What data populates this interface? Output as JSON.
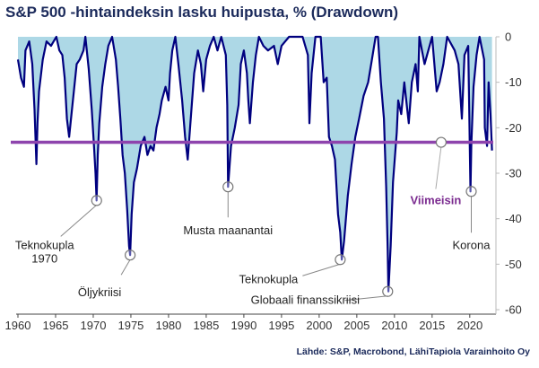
{
  "chart_data": {
    "type": "area",
    "title": "S&P 500 -hintaindeksin lasku huipusta, % (Drawdown)",
    "source": "Lähde: S&P, Macrobond, LähiTapiola Varainhoito Oy",
    "xlim": [
      1960,
      2023
    ],
    "ylim": [
      -60,
      0
    ],
    "x_ticks": [
      1960,
      1965,
      1970,
      1975,
      1980,
      1985,
      1990,
      1995,
      2000,
      2005,
      2010,
      2015,
      2020
    ],
    "y_ticks": [
      0,
      -10,
      -20,
      -30,
      -40,
      -50,
      -60
    ],
    "grid": false,
    "series": [
      {
        "fill": "#add8e6",
        "color": "#00007f",
        "x": [
          1960.0,
          1960.4,
          1960.8,
          1961.0,
          1961.5,
          1961.9,
          1962.2,
          1962.45,
          1962.6,
          1962.8,
          1963.3,
          1963.8,
          1964.4,
          1965.1,
          1965.5,
          1965.9,
          1966.2,
          1966.5,
          1966.8,
          1967.3,
          1967.8,
          1968.2,
          1968.7,
          1968.95,
          1969.4,
          1969.8,
          1970.1,
          1970.3,
          1970.45,
          1970.6,
          1970.8,
          1971.2,
          1971.6,
          1972.0,
          1972.5,
          1973.0,
          1973.3,
          1973.6,
          1973.9,
          1974.2,
          1974.5,
          1974.75,
          1974.9,
          1975.1,
          1975.4,
          1975.8,
          1976.3,
          1976.8,
          1977.2,
          1977.6,
          1978.0,
          1978.4,
          1978.8,
          1979.1,
          1979.6,
          1980.0,
          1980.2,
          1980.5,
          1980.9,
          1981.3,
          1981.8,
          1982.2,
          1982.55,
          1982.9,
          1983.4,
          1983.9,
          1984.3,
          1984.6,
          1985.0,
          1985.5,
          1986.0,
          1986.5,
          1987.0,
          1987.6,
          1987.8,
          1987.9,
          1988.3,
          1988.8,
          1989.3,
          1989.6,
          1990.0,
          1990.4,
          1990.6,
          1990.8,
          1991.2,
          1991.6,
          1992.0,
          1992.6,
          1993.2,
          1994.0,
          1994.5,
          1995.0,
          1996.0,
          1997.0,
          1997.8,
          1998.5,
          1998.7,
          1999.0,
          1999.5,
          2000.2,
          2000.6,
          2001.0,
          2001.3,
          2001.7,
          2002.1,
          2002.5,
          2002.8,
          2003.0,
          2003.3,
          2003.8,
          2004.3,
          2004.8,
          2005.3,
          2005.9,
          2006.5,
          2007.0,
          2007.5,
          2007.8,
          2008.2,
          2008.6,
          2008.9,
          2009.1,
          2009.2,
          2009.5,
          2009.8,
          2010.3,
          2010.5,
          2010.9,
          2011.3,
          2011.7,
          2011.9,
          2012.3,
          2012.8,
          2013.1,
          2013.3,
          2014.0,
          2015.0,
          2015.6,
          2016.0,
          2016.5,
          2017.0,
          2018.0,
          2018.5,
          2018.95,
          2019.3,
          2019.8,
          2020.1,
          2020.2,
          2020.5,
          2020.9,
          2021.3,
          2021.9,
          2022.0,
          2022.3,
          2022.5,
          2022.75,
          2022.95
        ],
        "values": [
          -5,
          -9,
          -11,
          -3,
          -1,
          -6,
          -16,
          -28,
          -19,
          -12,
          -5,
          -1,
          -2,
          0,
          -3,
          -4,
          -9,
          -18,
          -22,
          -14,
          -6,
          -5,
          -3,
          0,
          -7,
          -16,
          -24,
          -30,
          -36,
          -26,
          -19,
          -11,
          -6,
          -2,
          0,
          -5,
          -11,
          -18,
          -26,
          -30,
          -38,
          -46,
          -48,
          -39,
          -32,
          -29,
          -24,
          -22,
          -26,
          -24,
          -25,
          -20,
          -17,
          -14,
          -11,
          -14,
          -8,
          -3,
          0,
          -6,
          -14,
          -22,
          -27,
          -19,
          -8,
          -3,
          -6,
          -12,
          -5,
          -2,
          0,
          -3,
          0,
          -4,
          -15,
          -33,
          -24,
          -20,
          -15,
          -6,
          -3,
          -8,
          -14,
          -19,
          -10,
          -4,
          0,
          -2,
          -3,
          -2,
          -6,
          -2,
          0,
          0,
          0,
          -4,
          -19,
          -8,
          0,
          0,
          -10,
          -9,
          -22,
          -24,
          -27,
          -39,
          -43,
          -49,
          -45,
          -35,
          -28,
          -22,
          -18,
          -13,
          -10,
          -5,
          0,
          0,
          -10,
          -18,
          -33,
          -47,
          -56,
          -46,
          -32,
          -21,
          -14,
          -17,
          -10,
          -16,
          -19,
          -10,
          -6,
          -12,
          0,
          -6,
          0,
          -12,
          -10,
          -6,
          0,
          -3,
          -6,
          -18,
          -4,
          -2,
          -34,
          -24,
          -11,
          -4,
          0,
          -5,
          -20,
          -24,
          -10,
          -17,
          -25
        ]
      }
    ],
    "reference_line": {
      "y": -23.2,
      "color": "#8e44ad"
    },
    "annotations": [
      {
        "label": "Teknokupla\n1970",
        "x": 1970.45,
        "y": -36
      },
      {
        "label": "Öljykriisi",
        "x": 1974.9,
        "y": -48
      },
      {
        "label": "Musta maanantai",
        "x": 1987.9,
        "y": -33
      },
      {
        "label": "Teknokupla",
        "x": 2002.8,
        "y": -49
      },
      {
        "label": "Globaali finanssikriisi",
        "x": 2009.1,
        "y": -56
      },
      {
        "label": "Korona",
        "x": 2020.2,
        "y": -34
      },
      {
        "label": "Viimeisin",
        "x": 2016.2,
        "y": -23.2,
        "style": "latest"
      }
    ]
  }
}
